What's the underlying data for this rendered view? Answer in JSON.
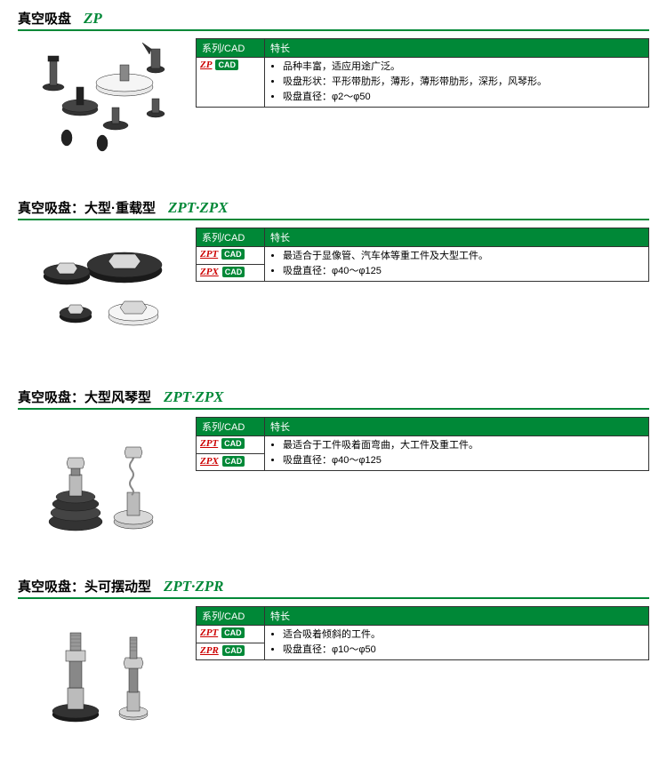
{
  "table_header": {
    "series": "系列/CAD",
    "feature": "特长"
  },
  "cad_label": "CAD",
  "sections": [
    {
      "title_main": "真空吸盘",
      "title_code": "ZP",
      "series": [
        {
          "code": "ZP"
        }
      ],
      "features": [
        "品种丰富，适应用途广泛。",
        "吸盘形状：平形带肋形，薄形，薄形带肋形，深形，风琴形。",
        "吸盘直径：φ2～φ50"
      ],
      "feature_rowspan": 1
    },
    {
      "title_main": "真空吸盘：大型·重载型",
      "title_code": "ZPT·ZPX",
      "series": [
        {
          "code": "ZPT"
        },
        {
          "code": "ZPX"
        }
      ],
      "features": [
        "最适合于显像管、汽车体等重工件及大型工件。",
        "吸盘直径：φ40～φ125"
      ],
      "feature_rowspan": 2
    },
    {
      "title_main": "真空吸盘：大型风琴型",
      "title_code": "ZPT·ZPX",
      "series": [
        {
          "code": "ZPT"
        },
        {
          "code": "ZPX"
        }
      ],
      "features": [
        "最适合于工件吸着面弯曲，大工件及重工件。",
        "吸盘直径：φ40～φ125"
      ],
      "feature_rowspan": 2
    },
    {
      "title_main": "真空吸盘：头可摆动型",
      "title_code": "ZPT·ZPR",
      "series": [
        {
          "code": "ZPT"
        },
        {
          "code": "ZPR"
        }
      ],
      "features": [
        "适合吸着倾斜的工件。",
        "吸盘直径：φ10～φ50"
      ],
      "feature_rowspan": 2
    }
  ]
}
